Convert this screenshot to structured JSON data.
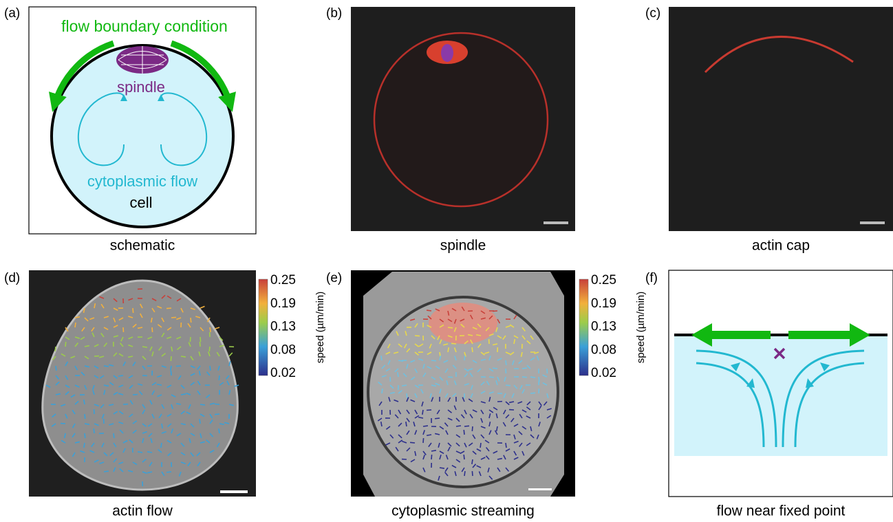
{
  "panels": [
    {
      "label": "(a)",
      "caption": "schematic"
    },
    {
      "label": "(b)",
      "caption": "spindle"
    },
    {
      "label": "(c)",
      "caption": "actin cap"
    },
    {
      "label": "(d)",
      "caption": "actin flow"
    },
    {
      "label": "(e)",
      "caption": "cytoplasmic streaming"
    },
    {
      "label": "(f)",
      "caption": "flow near fixed point"
    }
  ],
  "schematic": {
    "title": "flow boundary condition",
    "spindle": "spindle",
    "flow": "cytoplasmic flow",
    "cell": "cell"
  },
  "colorbar": {
    "label": "speed (µm/min)",
    "ticks": [
      "0.25",
      "0.19",
      "0.13",
      "0.08",
      "0.02"
    ]
  }
}
